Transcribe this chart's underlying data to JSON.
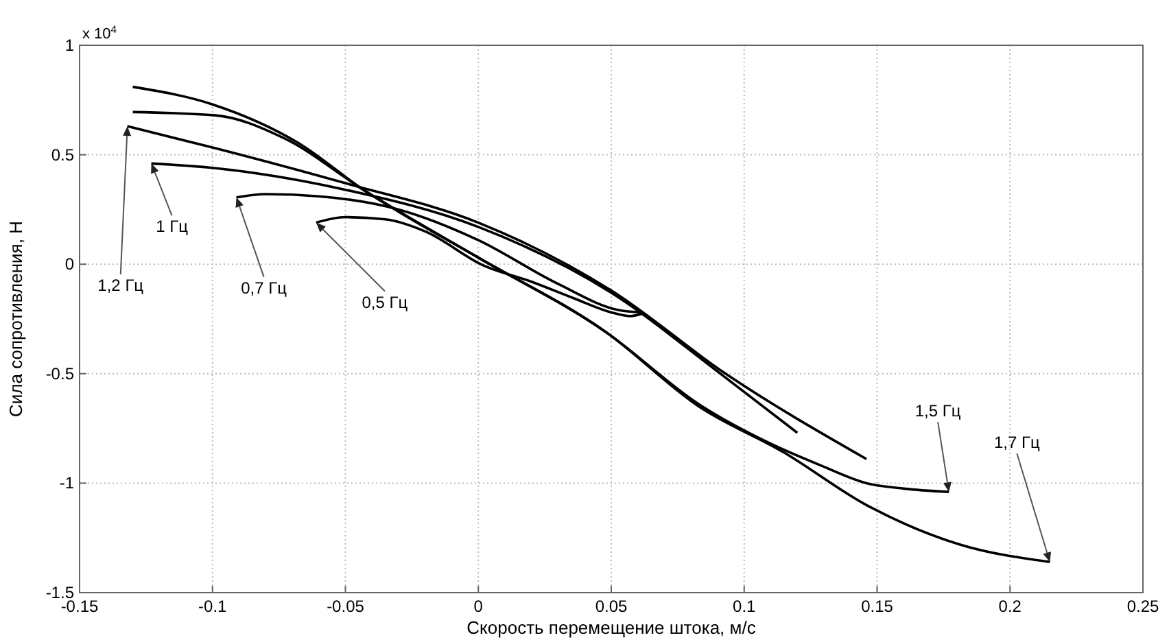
{
  "chart_data": {
    "type": "line",
    "xlabel": "Скорость перемещение штока, м/с",
    "ylabel": "Сила сопротивления, Н",
    "annotations": [
      "x 10$^{4}$",
      {
        "text": "1,2 Гц",
        "x": -0.132,
        "y": 0.63
      },
      {
        "text": "1 Гц",
        "x": -0.123,
        "y": 0.46
      },
      {
        "text": "0,7 Гц",
        "x": -0.091,
        "y": 0.305
      },
      {
        "text": "0,5 Гц",
        "x": -0.061,
        "y": 0.19
      },
      {
        "text": "1,5 Гц",
        "x": 0.177,
        "y": -1.04
      },
      {
        "text": "1,7 Гц",
        "x": 0.215,
        "y": -1.36
      }
    ],
    "xlim": [
      -0.15,
      0.25
    ],
    "xticks": [
      -0.15,
      -0.1,
      -0.05,
      0,
      0.05,
      0.1,
      0.15,
      0.2,
      0.25
    ],
    "ylim": [
      -1.5,
      1
    ],
    "yticks": [
      -1.5,
      -1,
      -0.5,
      0,
      0.5,
      1
    ],
    "grid": true,
    "line_style": "solid",
    "series": [
      {
        "color": "#000000",
        "x": [
          -0.132,
          -0.099,
          -0.05,
          0,
          0.05,
          0.093,
          0.146
        ],
        "values": [
          0.63,
          0.53,
          0.37,
          0.19,
          -0.12,
          -0.5,
          -0.89
        ]
      },
      {
        "color": "#000000",
        "x": [
          -0.123,
          -0.1,
          -0.05,
          0,
          0.05,
          0.09,
          0.12
        ],
        "values": [
          0.46,
          0.44,
          0.34,
          0.17,
          -0.13,
          -0.49,
          -0.77
        ]
      },
      {
        "color": "#000000",
        "x": [
          -0.091,
          -0.08,
          -0.06,
          -0.03,
          0,
          0.03,
          0.053,
          0.061
        ],
        "values": [
          0.305,
          0.32,
          0.31,
          0.25,
          0.11,
          -0.09,
          -0.21,
          -0.22
        ]
      },
      {
        "color": "#000000",
        "x": [
          -0.061,
          -0.05,
          -0.035,
          -0.02,
          0.002,
          0.02,
          0.036,
          0.05,
          0.057,
          0.062
        ],
        "values": [
          0.19,
          0.215,
          0.205,
          0.15,
          -0.006,
          -0.08,
          -0.156,
          -0.22,
          -0.237,
          -0.225
        ]
      },
      {
        "color": "#000000",
        "x": [
          -0.13,
          -0.099,
          -0.073,
          -0.042,
          0,
          0.048,
          0.083,
          0.11,
          0.129,
          0.146,
          0.16,
          0.177
        ],
        "values": [
          0.695,
          0.68,
          0.575,
          0.33,
          0.03,
          -0.31,
          -0.64,
          -0.82,
          -0.92,
          -1,
          -1.025,
          -1.04
        ]
      },
      {
        "color": "#000000",
        "x": [
          -0.13,
          -0.1,
          -0.068,
          -0.042,
          -0.03,
          0,
          0.048,
          0.083,
          0.115,
          0.146,
          0.181,
          0.215
        ],
        "values": [
          0.81,
          0.73,
          0.556,
          0.33,
          0.24,
          0.03,
          -0.31,
          -0.65,
          -0.86,
          -1.1,
          -1.28,
          -1.36
        ]
      }
    ]
  }
}
